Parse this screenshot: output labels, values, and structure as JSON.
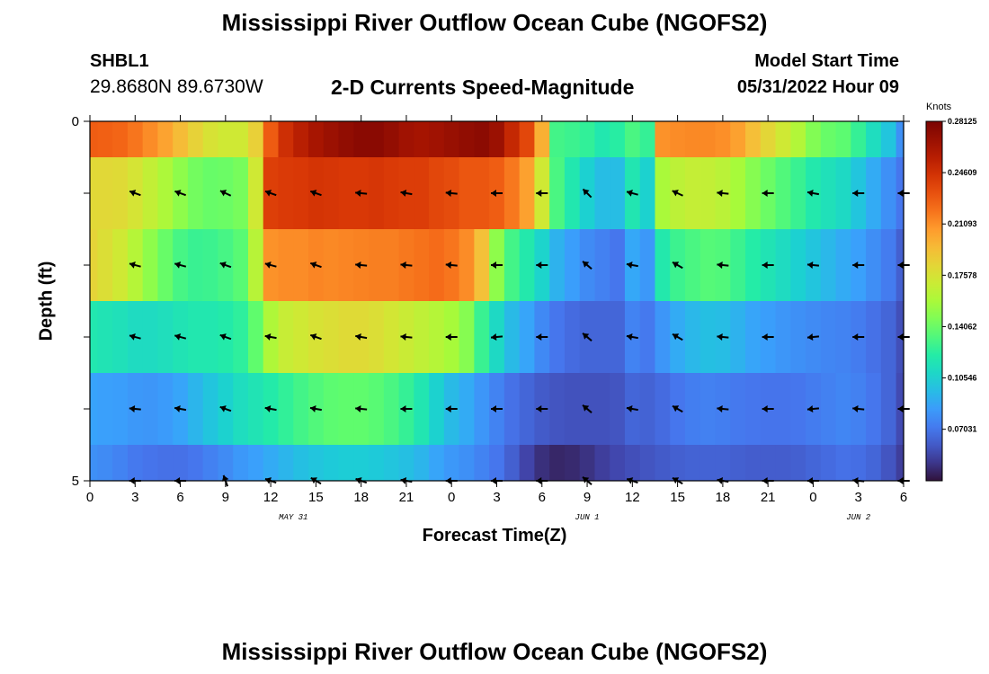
{
  "header": {
    "title": "Mississippi River Outflow Ocean Cube (NGOFS2)",
    "station": "SHBL1",
    "coordinates": "29.8680N  89.6730W",
    "subtitle": "2-D Currents Speed-Magnitude",
    "model_start_label": "Model Start Time",
    "model_start_time": "05/31/2022 Hour 09"
  },
  "footer": {
    "title": "Mississippi River Outflow Ocean Cube (NGOFS2)"
  },
  "chart_data": {
    "type": "heatmap",
    "title": "2-D Currents Speed-Magnitude",
    "xlabel": "Forecast Time(Z)",
    "ylabel": "Depth (ft)",
    "x_tick_labels": [
      "0",
      "3",
      "6",
      "9",
      "12",
      "15",
      "18",
      "21",
      "0",
      "3",
      "6",
      "9",
      "12",
      "15",
      "18",
      "21",
      "0",
      "3",
      "6"
    ],
    "x_date_labels": [
      "MAY 31",
      "JUN 1",
      "JUN 2"
    ],
    "y_tick_labels": [
      "0",
      "5"
    ],
    "ylim": [
      0,
      5
    ],
    "forecast_hours": [
      0,
      1,
      2,
      3,
      4,
      5,
      6,
      7,
      8,
      9,
      10,
      11,
      12,
      13,
      14,
      15,
      16,
      17,
      18,
      19,
      20,
      21,
      22,
      23,
      24,
      25,
      26,
      27,
      28,
      29,
      30,
      31,
      32,
      33,
      34,
      35,
      36,
      37,
      38,
      39,
      40,
      41,
      42,
      43,
      44,
      45,
      46,
      47,
      48,
      49,
      50,
      51,
      52,
      53,
      54
    ],
    "depth_layers": [
      0,
      1,
      2,
      3,
      4,
      5
    ],
    "speed": [
      [
        0.227,
        0.226,
        0.224,
        0.219,
        0.212,
        0.204,
        0.194,
        0.184,
        0.176,
        0.172,
        0.172,
        0.185,
        0.228,
        0.247,
        0.256,
        0.263,
        0.268,
        0.272,
        0.275,
        0.275,
        0.271,
        0.266,
        0.264,
        0.266,
        0.269,
        0.272,
        0.274,
        0.268,
        0.251,
        0.236,
        0.199,
        0.13,
        0.128,
        0.125,
        0.118,
        0.122,
        0.132,
        0.126,
        0.21,
        0.212,
        0.213,
        0.213,
        0.211,
        0.205,
        0.193,
        0.182,
        0.172,
        0.161,
        0.147,
        0.14,
        0.137,
        0.126,
        0.112,
        0.1,
        0.08
      ],
      [
        0.181,
        0.181,
        0.18,
        0.175,
        0.167,
        0.159,
        0.15,
        0.143,
        0.14,
        0.141,
        0.144,
        0.172,
        0.239,
        0.241,
        0.242,
        0.244,
        0.243,
        0.242,
        0.242,
        0.243,
        0.241,
        0.24,
        0.24,
        0.236,
        0.234,
        0.23,
        0.23,
        0.227,
        0.218,
        0.205,
        0.172,
        0.132,
        0.118,
        0.105,
        0.097,
        0.097,
        0.117,
        0.106,
        0.158,
        0.165,
        0.168,
        0.167,
        0.164,
        0.157,
        0.148,
        0.141,
        0.134,
        0.127,
        0.119,
        0.114,
        0.11,
        0.1,
        0.09,
        0.08,
        0.07
      ],
      [
        0.183,
        0.178,
        0.172,
        0.162,
        0.15,
        0.14,
        0.131,
        0.127,
        0.128,
        0.131,
        0.136,
        0.163,
        0.21,
        0.212,
        0.212,
        0.214,
        0.213,
        0.214,
        0.215,
        0.216,
        0.216,
        0.218,
        0.22,
        0.222,
        0.219,
        0.212,
        0.192,
        0.15,
        0.13,
        0.119,
        0.107,
        0.093,
        0.085,
        0.078,
        0.074,
        0.07,
        0.089,
        0.083,
        0.119,
        0.128,
        0.132,
        0.135,
        0.134,
        0.128,
        0.121,
        0.116,
        0.111,
        0.105,
        0.1,
        0.095,
        0.09,
        0.086,
        0.079,
        0.072,
        0.062
      ],
      [
        0.118,
        0.116,
        0.114,
        0.111,
        0.111,
        0.113,
        0.116,
        0.118,
        0.118,
        0.12,
        0.124,
        0.138,
        0.16,
        0.169,
        0.172,
        0.176,
        0.178,
        0.18,
        0.18,
        0.178,
        0.174,
        0.17,
        0.166,
        0.162,
        0.157,
        0.148,
        0.127,
        0.11,
        0.096,
        0.088,
        0.077,
        0.07,
        0.066,
        0.064,
        0.064,
        0.064,
        0.075,
        0.071,
        0.082,
        0.09,
        0.095,
        0.098,
        0.097,
        0.093,
        0.088,
        0.085,
        0.082,
        0.08,
        0.078,
        0.076,
        0.075,
        0.072,
        0.068,
        0.064,
        0.056
      ],
      [
        0.087,
        0.086,
        0.085,
        0.083,
        0.082,
        0.084,
        0.088,
        0.094,
        0.1,
        0.106,
        0.112,
        0.116,
        0.12,
        0.125,
        0.13,
        0.134,
        0.137,
        0.138,
        0.138,
        0.136,
        0.132,
        0.126,
        0.117,
        0.106,
        0.096,
        0.09,
        0.082,
        0.075,
        0.068,
        0.064,
        0.06,
        0.058,
        0.057,
        0.057,
        0.057,
        0.058,
        0.064,
        0.063,
        0.066,
        0.07,
        0.073,
        0.074,
        0.073,
        0.071,
        0.07,
        0.069,
        0.069,
        0.07,
        0.072,
        0.074,
        0.076,
        0.074,
        0.07,
        0.064,
        0.054
      ],
      [
        0.08,
        0.078,
        0.075,
        0.071,
        0.069,
        0.068,
        0.068,
        0.07,
        0.074,
        0.078,
        0.083,
        0.086,
        0.09,
        0.094,
        0.098,
        0.1,
        0.102,
        0.103,
        0.103,
        0.102,
        0.1,
        0.098,
        0.094,
        0.088,
        0.083,
        0.08,
        0.075,
        0.07,
        0.062,
        0.052,
        0.045,
        0.042,
        0.043,
        0.046,
        0.05,
        0.053,
        0.056,
        0.058,
        0.06,
        0.062,
        0.063,
        0.063,
        0.063,
        0.062,
        0.061,
        0.061,
        0.061,
        0.062,
        0.064,
        0.066,
        0.068,
        0.067,
        0.064,
        0.058,
        0.05
      ]
    ],
    "vector_depths": [
      1,
      2,
      3,
      4,
      5
    ],
    "vector_hours": [
      3,
      6,
      9,
      12,
      15,
      18,
      21,
      24,
      27,
      30,
      33,
      36,
      39,
      42,
      45,
      48,
      51,
      54
    ],
    "vector_direction_deg": [
      [
        160,
        160,
        155,
        160,
        160,
        175,
        170,
        175,
        180,
        180,
        135,
        165,
        155,
        175,
        180,
        170,
        180,
        180
      ],
      [
        165,
        165,
        160,
        165,
        160,
        175,
        175,
        175,
        180,
        180,
        140,
        170,
        150,
        175,
        180,
        175,
        180,
        180
      ],
      [
        165,
        165,
        160,
        170,
        160,
        170,
        175,
        180,
        185,
        180,
        140,
        170,
        150,
        175,
        180,
        185,
        180,
        180
      ],
      [
        175,
        170,
        160,
        170,
        170,
        175,
        180,
        180,
        180,
        180,
        140,
        170,
        150,
        175,
        180,
        185,
        175,
        180
      ],
      [
        180,
        180,
        110,
        160,
        150,
        160,
        170,
        180,
        180,
        180,
        140,
        160,
        150,
        170,
        180,
        180,
        175,
        180
      ]
    ],
    "colorbar": {
      "label": "Knots",
      "min": 0.035,
      "max": 0.28125,
      "ticks": [
        "0.28125",
        "0.24609",
        "0.21093",
        "0.17578",
        "0.14062",
        "0.10546",
        "0.07031"
      ],
      "colormap": "turbo"
    }
  }
}
